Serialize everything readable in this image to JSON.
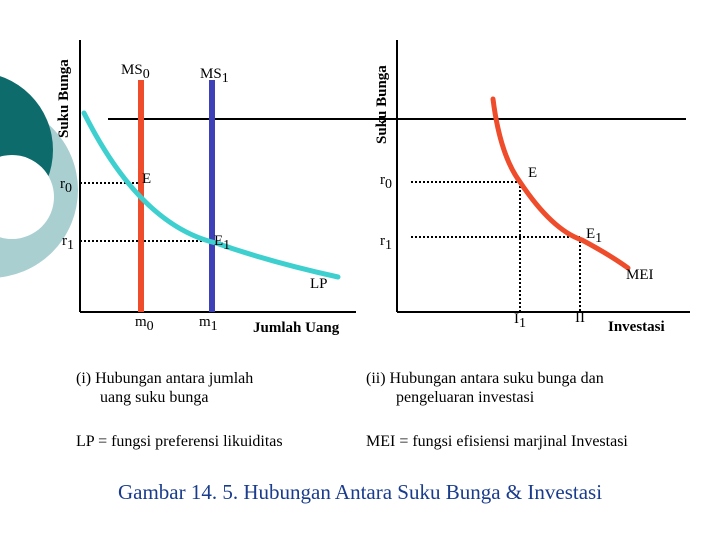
{
  "colors": {
    "teal_dark": "#0d6b6b",
    "teal_light": "#a9cfd0",
    "ms0_line": "#ee4c2a",
    "ms1_line": "#3e40b8",
    "lp_curve": "#3ecfcf",
    "mei_curve": "#ee4c2a",
    "title": "#1a3c8c"
  },
  "left_chart": {
    "y_axis_label": "Suku Bunga",
    "x_axis_label": "Jumlah Uang",
    "ms0_label": "MS",
    "ms0_sub": "0",
    "ms1_label": "MS",
    "ms1_sub": "1",
    "r0_label": "r",
    "r0_sub": "0",
    "r1_label": "r",
    "r1_sub": "1",
    "e_label": "E",
    "e1_label": "E",
    "e1_sub": "1",
    "lp_label": "LP",
    "m0_label": "m",
    "m0_sub": "0",
    "m1_label": "m",
    "m1_sub": "1"
  },
  "right_chart": {
    "y_axis_label": "Suku Bunga",
    "x_axis_label": "Investasi",
    "r0_label": "r",
    "r0_sub": "0",
    "r1_label": "r",
    "r1_sub": "1",
    "e_label": "E",
    "e1_label": "E",
    "e1_sub": "1",
    "mei_label": "MEI",
    "i1_label": "I",
    "i1_sub": "1",
    "i_label": "II"
  },
  "captions": {
    "left_line1": "(i)  Hubungan antara jumlah",
    "left_line2": "uang  suku bunga",
    "right_line1": "(ii) Hubungan antara suku bunga dan",
    "right_line2": "pengeluaran investasi",
    "lp_def": "LP = fungsi preferensi likuiditas",
    "mei_def": "MEI = fungsi efisiensi marjinal Investasi"
  },
  "title": "Gambar 14. 5. Hubungan Antara Suku Bunga & Investasi"
}
